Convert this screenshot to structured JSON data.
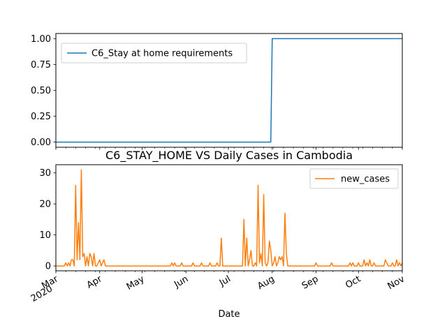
{
  "chart_data": [
    {
      "type": "line",
      "title": "",
      "xlabel": "",
      "ylabel": "",
      "x_range": [
        "2020-03-01",
        "2020-11-01"
      ],
      "ylim": [
        -0.05,
        1.05
      ],
      "yticks": [
        "0.00",
        "0.25",
        "0.50",
        "0.75",
        "1.00"
      ],
      "legend_position": "upper-left",
      "grid": false,
      "series": [
        {
          "name": "C6_Stay at home requirements",
          "color": "#1f77b4",
          "points": [
            {
              "date": "2020-03-01",
              "value": 0
            },
            {
              "date": "2020-07-31",
              "value": 0
            },
            {
              "date": "2020-08-01",
              "value": 1
            },
            {
              "date": "2020-11-01",
              "value": 1
            }
          ]
        }
      ]
    },
    {
      "type": "line",
      "title": "C6_STAY_HOME VS Daily Cases in Cambodia",
      "xlabel": "Date",
      "ylabel": "",
      "x_range": [
        "2020-03-01",
        "2020-11-01"
      ],
      "ylim": [
        -1.56,
        32.64
      ],
      "yticks": [
        "0",
        "10",
        "20",
        "30"
      ],
      "xticks": [
        {
          "date": "2020-03-01",
          "label": "Mar",
          "sublabel": "2020"
        },
        {
          "date": "2020-04-01",
          "label": "Apr"
        },
        {
          "date": "2020-05-01",
          "label": "May"
        },
        {
          "date": "2020-06-01",
          "label": "Jun"
        },
        {
          "date": "2020-07-01",
          "label": "Jul"
        },
        {
          "date": "2020-08-01",
          "label": "Aug"
        },
        {
          "date": "2020-09-01",
          "label": "Sep"
        },
        {
          "date": "2020-10-01",
          "label": "Oct"
        },
        {
          "date": "2020-11-01",
          "label": "Nov"
        }
      ],
      "legend_position": "upper-right",
      "grid": false,
      "series": [
        {
          "name": "new_cases",
          "color": "#ff7f0e",
          "points": [
            {
              "date": "2020-03-01",
              "value": 0
            },
            {
              "date": "2020-03-07",
              "value": 0
            },
            {
              "date": "2020-03-08",
              "value": 1
            },
            {
              "date": "2020-03-09",
              "value": 0
            },
            {
              "date": "2020-03-10",
              "value": 1
            },
            {
              "date": "2020-03-11",
              "value": 0
            },
            {
              "date": "2020-03-12",
              "value": 2
            },
            {
              "date": "2020-03-13",
              "value": 2
            },
            {
              "date": "2020-03-14",
              "value": 0
            },
            {
              "date": "2020-03-15",
              "value": 26
            },
            {
              "date": "2020-03-16",
              "value": 2
            },
            {
              "date": "2020-03-17",
              "value": 14
            },
            {
              "date": "2020-03-18",
              "value": 2
            },
            {
              "date": "2020-03-19",
              "value": 31
            },
            {
              "date": "2020-03-20",
              "value": 3
            },
            {
              "date": "2020-03-21",
              "value": 4
            },
            {
              "date": "2020-03-22",
              "value": 0
            },
            {
              "date": "2020-03-23",
              "value": 3
            },
            {
              "date": "2020-03-24",
              "value": 0
            },
            {
              "date": "2020-03-25",
              "value": 4
            },
            {
              "date": "2020-03-26",
              "value": 3
            },
            {
              "date": "2020-03-27",
              "value": 0
            },
            {
              "date": "2020-03-28",
              "value": 4
            },
            {
              "date": "2020-03-29",
              "value": 0
            },
            {
              "date": "2020-03-30",
              "value": 0
            },
            {
              "date": "2020-03-31",
              "value": 1
            },
            {
              "date": "2020-04-01",
              "value": 2
            },
            {
              "date": "2020-04-02",
              "value": 0
            },
            {
              "date": "2020-04-03",
              "value": 1
            },
            {
              "date": "2020-04-04",
              "value": 2
            },
            {
              "date": "2020-04-05",
              "value": 0
            },
            {
              "date": "2020-05-21",
              "value": 0
            },
            {
              "date": "2020-05-22",
              "value": 1
            },
            {
              "date": "2020-05-23",
              "value": 0
            },
            {
              "date": "2020-05-24",
              "value": 1
            },
            {
              "date": "2020-05-25",
              "value": 0
            },
            {
              "date": "2020-05-28",
              "value": 0
            },
            {
              "date": "2020-05-29",
              "value": 1
            },
            {
              "date": "2020-05-30",
              "value": 0
            },
            {
              "date": "2020-06-05",
              "value": 0
            },
            {
              "date": "2020-06-06",
              "value": 1
            },
            {
              "date": "2020-06-07",
              "value": 0
            },
            {
              "date": "2020-06-11",
              "value": 0
            },
            {
              "date": "2020-06-12",
              "value": 1
            },
            {
              "date": "2020-06-13",
              "value": 0
            },
            {
              "date": "2020-06-17",
              "value": 0
            },
            {
              "date": "2020-06-18",
              "value": 1
            },
            {
              "date": "2020-06-19",
              "value": 0
            },
            {
              "date": "2020-06-22",
              "value": 0
            },
            {
              "date": "2020-06-23",
              "value": 1
            },
            {
              "date": "2020-06-24",
              "value": 0
            },
            {
              "date": "2020-06-25",
              "value": 0
            },
            {
              "date": "2020-06-26",
              "value": 9
            },
            {
              "date": "2020-06-27",
              "value": 0
            },
            {
              "date": "2020-07-11",
              "value": 0
            },
            {
              "date": "2020-07-12",
              "value": 15
            },
            {
              "date": "2020-07-13",
              "value": 0
            },
            {
              "date": "2020-07-14",
              "value": 9
            },
            {
              "date": "2020-07-15",
              "value": 0
            },
            {
              "date": "2020-07-16",
              "value": 2
            },
            {
              "date": "2020-07-17",
              "value": 5
            },
            {
              "date": "2020-07-18",
              "value": 0
            },
            {
              "date": "2020-07-19",
              "value": 0
            },
            {
              "date": "2020-07-20",
              "value": 1
            },
            {
              "date": "2020-07-21",
              "value": 0
            },
            {
              "date": "2020-07-22",
              "value": 26
            },
            {
              "date": "2020-07-23",
              "value": 1
            },
            {
              "date": "2020-07-24",
              "value": 4
            },
            {
              "date": "2020-07-25",
              "value": 0
            },
            {
              "date": "2020-07-26",
              "value": 23
            },
            {
              "date": "2020-07-27",
              "value": 1
            },
            {
              "date": "2020-07-28",
              "value": 0
            },
            {
              "date": "2020-07-29",
              "value": 1
            },
            {
              "date": "2020-07-30",
              "value": 8
            },
            {
              "date": "2020-07-31",
              "value": 5
            },
            {
              "date": "2020-08-01",
              "value": 0
            },
            {
              "date": "2020-08-02",
              "value": 1
            },
            {
              "date": "2020-08-03",
              "value": 3
            },
            {
              "date": "2020-08-04",
              "value": 0
            },
            {
              "date": "2020-08-05",
              "value": 1
            },
            {
              "date": "2020-08-06",
              "value": 3
            },
            {
              "date": "2020-08-07",
              "value": 2
            },
            {
              "date": "2020-08-08",
              "value": 3
            },
            {
              "date": "2020-08-09",
              "value": 0
            },
            {
              "date": "2020-08-10",
              "value": 17
            },
            {
              "date": "2020-08-11",
              "value": 4
            },
            {
              "date": "2020-08-12",
              "value": 0
            },
            {
              "date": "2020-08-31",
              "value": 0
            },
            {
              "date": "2020-09-01",
              "value": 1
            },
            {
              "date": "2020-09-02",
              "value": 0
            },
            {
              "date": "2020-09-11",
              "value": 0
            },
            {
              "date": "2020-09-12",
              "value": 1
            },
            {
              "date": "2020-09-13",
              "value": 0
            },
            {
              "date": "2020-09-24",
              "value": 0
            },
            {
              "date": "2020-09-25",
              "value": 1
            },
            {
              "date": "2020-09-26",
              "value": 0
            },
            {
              "date": "2020-09-27",
              "value": 1
            },
            {
              "date": "2020-09-28",
              "value": 0
            },
            {
              "date": "2020-09-30",
              "value": 0
            },
            {
              "date": "2020-10-01",
              "value": 1
            },
            {
              "date": "2020-10-02",
              "value": 0
            },
            {
              "date": "2020-10-04",
              "value": 0
            },
            {
              "date": "2020-10-05",
              "value": 2
            },
            {
              "date": "2020-10-06",
              "value": 0
            },
            {
              "date": "2020-10-07",
              "value": 1
            },
            {
              "date": "2020-10-08",
              "value": 0
            },
            {
              "date": "2020-10-09",
              "value": 2
            },
            {
              "date": "2020-10-10",
              "value": 0
            },
            {
              "date": "2020-10-11",
              "value": 0
            },
            {
              "date": "2020-10-12",
              "value": 1
            },
            {
              "date": "2020-10-13",
              "value": 0
            },
            {
              "date": "2020-10-19",
              "value": 0
            },
            {
              "date": "2020-10-20",
              "value": 2
            },
            {
              "date": "2020-10-21",
              "value": 1
            },
            {
              "date": "2020-10-22",
              "value": 0
            },
            {
              "date": "2020-10-24",
              "value": 0
            },
            {
              "date": "2020-10-25",
              "value": 1
            },
            {
              "date": "2020-10-26",
              "value": 0
            },
            {
              "date": "2020-10-27",
              "value": 0
            },
            {
              "date": "2020-10-28",
              "value": 2
            },
            {
              "date": "2020-10-29",
              "value": 0
            },
            {
              "date": "2020-10-30",
              "value": 1
            },
            {
              "date": "2020-10-31",
              "value": 0
            },
            {
              "date": "2020-11-01",
              "value": 1
            }
          ]
        }
      ]
    }
  ]
}
